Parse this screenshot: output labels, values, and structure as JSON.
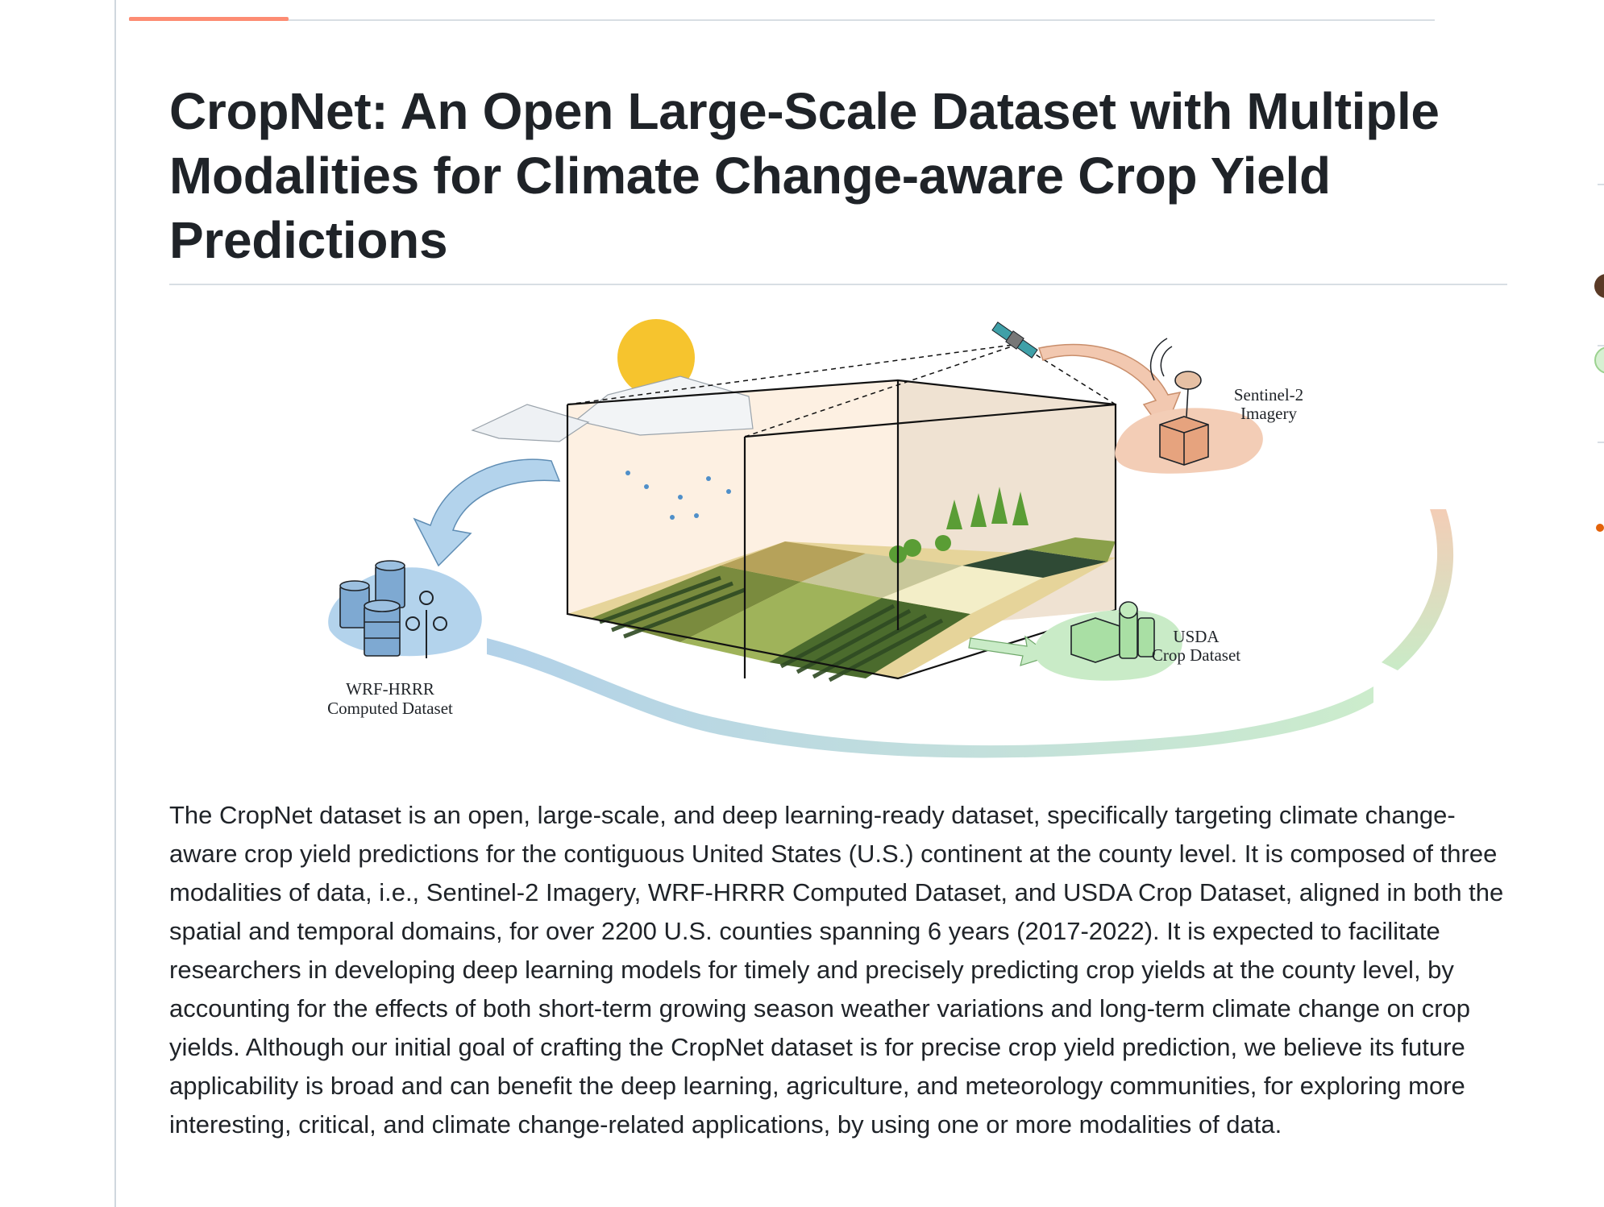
{
  "readme": {
    "title": "CropNet: An Open Large-Scale Dataset with Multiple Modalities for Climate Change-aware Crop Yield Predictions",
    "figure": {
      "wrf_label_line1": "WRF-HRRR",
      "wrf_label_line2": "Computed Dataset",
      "sentinel_label_line1": "Sentinel-2",
      "sentinel_label_line2": "Imagery",
      "usda_label_line1": "USDA",
      "usda_label_line2": "Crop Dataset"
    },
    "description": "The CropNet dataset is an open, large-scale, and deep learning-ready dataset, specifically targeting climate change-aware crop yield predictions for the contiguous United States (U.S.) continent at the county level. It is composed of three modalities of data, i.e., Sentinel-2 Imagery, WRF-HRRR Computed Dataset, and USDA Crop Dataset, aligned in both the spatial and temporal domains, for over 2200 U.S. counties spanning 6 years (2017-2022). It is expected to facilitate researchers in developing deep learning models for timely and precisely predicting crop yields at the county level, by accounting for the effects of both short-term growing season weather variations and long-term climate change on crop yields. Although our initial goal of crafting the CropNet dataset is for precise crop yield prediction, we believe its future applicability is broad and can benefit the deep learning, agriculture, and meteorology communities, for exploring more interesting, critical, and climate change-related applications, by using one or more modalities of data."
  },
  "colors": {
    "tab_active": "#fd8c73",
    "border": "#d0d7de",
    "text": "#1f2328"
  }
}
